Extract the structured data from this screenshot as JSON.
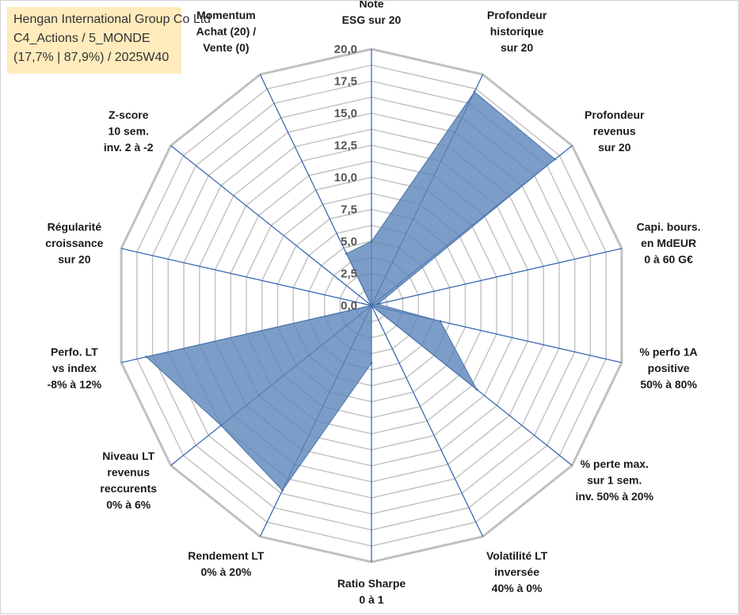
{
  "header": {
    "line1": "Hengan International Group Co Ltd",
    "line2": "C4_Actions / 5_MONDE",
    "line3": "(17,7% | 87,9%) / 2025W40"
  },
  "colors": {
    "fill": "#5b84b9",
    "grid": "#c0c0c0",
    "spoke": "#2f5fb0"
  },
  "chart_data": {
    "type": "radar",
    "title": "",
    "rmin": 0,
    "rmax": 20,
    "ticks": [
      0,
      2.5,
      5,
      7.5,
      10,
      12.5,
      15,
      17.5,
      20
    ],
    "tick_labels": [
      "0,0",
      "2,5",
      "5,0",
      "7,5",
      "10,0",
      "12,5",
      "15,0",
      "17,5",
      "20,0"
    ],
    "axes": [
      {
        "lines": [
          "Note",
          "ESG sur 20"
        ],
        "value": 5.0
      },
      {
        "lines": [
          "Profondeur",
          "historique",
          "sur 20"
        ],
        "value": 18.5
      },
      {
        "lines": [
          "Profondeur",
          "revenus",
          "sur 20"
        ],
        "value": 18.3
      },
      {
        "lines": [
          "Capi. bours.",
          "en MdEUR",
          "0 à 60 G€"
        ],
        "value": 0.5
      },
      {
        "lines": [
          "% perfo 1A",
          "positive",
          "50% à 80%"
        ],
        "value": 5.5
      },
      {
        "lines": [
          "% perte max.",
          "sur 1 sem.",
          "inv. 50% à 20%"
        ],
        "value": 10.5
      },
      {
        "lines": [
          "Volatilité LT",
          "inversée",
          "40% à 0%"
        ],
        "value": 0.0
      },
      {
        "lines": [
          "Ratio Sharpe",
          "0 à 1"
        ],
        "value": 4.5
      },
      {
        "lines": [
          "Rendement LT",
          "0% à 20%"
        ],
        "value": 16.0
      },
      {
        "lines": [
          "Niveau LT",
          "revenus",
          "reccurents",
          "0% à 6%"
        ],
        "value": 15.0
      },
      {
        "lines": [
          "Perfo. LT",
          "vs index",
          "-8% à 12%"
        ],
        "value": 18.0
      },
      {
        "lines": [
          "Régularité",
          "croissance",
          "sur 20"
        ],
        "value": 0.0
      },
      {
        "lines": [
          "Z-score",
          "10 sem.",
          "inv. 2 à -2"
        ],
        "value": 0.0
      },
      {
        "lines": [
          "Momentum",
          "Achat (20) /",
          "Vente (0)"
        ],
        "value": 4.5
      }
    ]
  }
}
